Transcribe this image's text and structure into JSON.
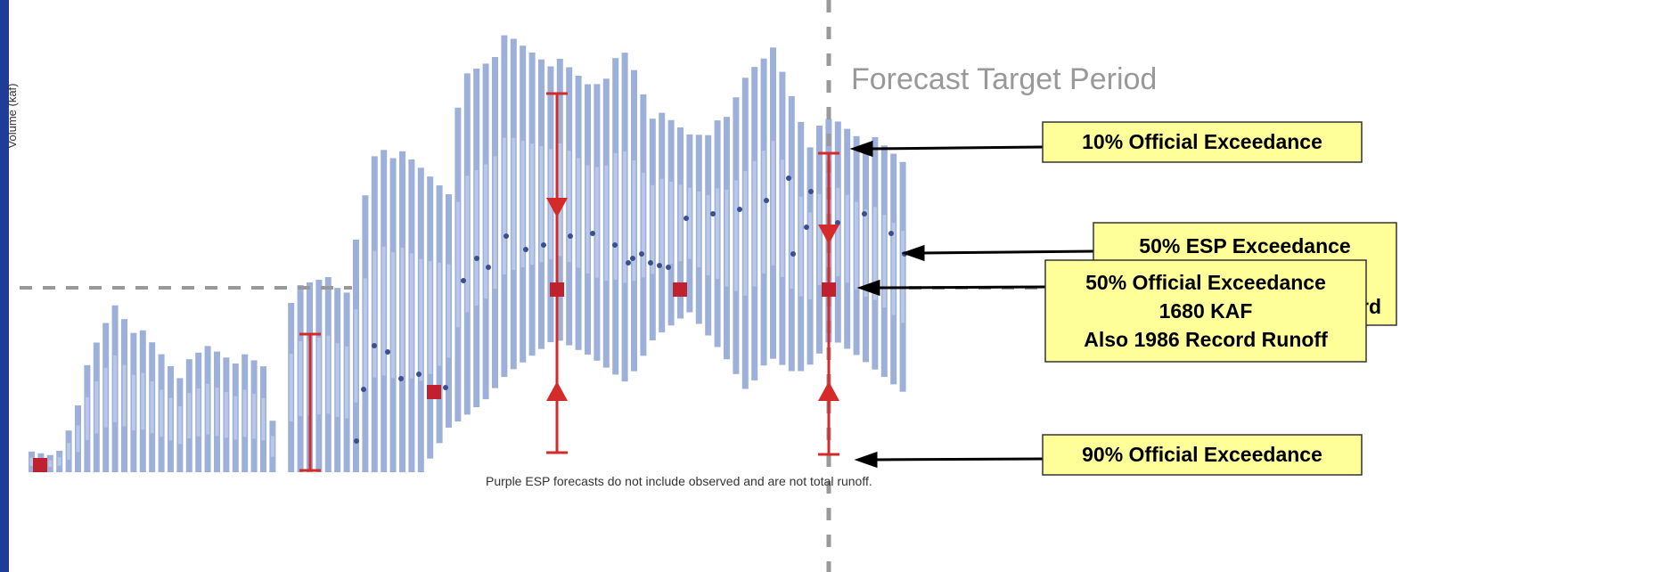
{
  "y_axis_label": "Volume (kaf)",
  "period_label": "Forecast Target Period",
  "footnote": "Purple ESP forecasts do not include observed and are not total runoff.",
  "annotations": [
    {
      "lines": [
        "10% Official Exceedance"
      ]
    },
    {
      "lines": [
        "50% ESP Exceedance"
      ],
      "covered_fragment": "rd"
    },
    {
      "lines": [
        "50% Official Exceedance",
        "1680 KAF",
        "Also 1986 Record Runoff"
      ]
    },
    {
      "lines": [
        "90% Official Exceedance"
      ]
    }
  ]
}
